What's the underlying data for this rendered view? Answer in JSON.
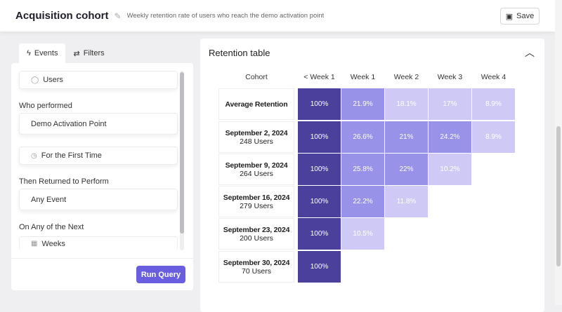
{
  "header": {
    "title": "Acquisition cohort",
    "subtitle": "Weekly retention rate of users who reach the demo activation point",
    "save_label": "Save"
  },
  "left_panel": {
    "tabs": [
      {
        "label": "Events",
        "icon": "lightning-icon",
        "active": true
      },
      {
        "label": "Filters",
        "icon": "sliders-icon",
        "active": false
      }
    ],
    "subject": "Users",
    "who_performed_label": "Who performed",
    "who_performed_value": "Demo Activation Point",
    "frequency": "For the First Time",
    "returned_label": "Then Returned to Perform",
    "returned_value": "Any Event",
    "next_label": "On Any of the Next",
    "next_value": "Weeks",
    "run_label": "Run Query"
  },
  "retention": {
    "title": "Retention table",
    "columns": [
      "Cohort",
      "< Week 1",
      "Week 1",
      "Week 2",
      "Week 3",
      "Week 4"
    ],
    "colors": {
      "high": "#4b409c",
      "mid": "#9892e9",
      "low": "#cecaf5"
    },
    "rows": [
      {
        "name": "Average Retention",
        "users": "",
        "values": [
          "100%",
          "21.9%",
          "18.1%",
          "17%",
          "8.9%"
        ]
      },
      {
        "name": "September 2, 2024",
        "users": "248 Users",
        "values": [
          "100%",
          "26.6%",
          "21%",
          "24.2%",
          "8.9%"
        ]
      },
      {
        "name": "September 9, 2024",
        "users": "264 Users",
        "values": [
          "100%",
          "25.8%",
          "22%",
          "10.2%"
        ]
      },
      {
        "name": "September 16, 2024",
        "users": "279 Users",
        "values": [
          "100%",
          "22.2%",
          "11.8%"
        ]
      },
      {
        "name": "September 23, 2024",
        "users": "200 Users",
        "values": [
          "100%",
          "10.5%"
        ]
      },
      {
        "name": "September 30, 2024",
        "users": "70 Users",
        "values": [
          "100%"
        ]
      }
    ]
  }
}
